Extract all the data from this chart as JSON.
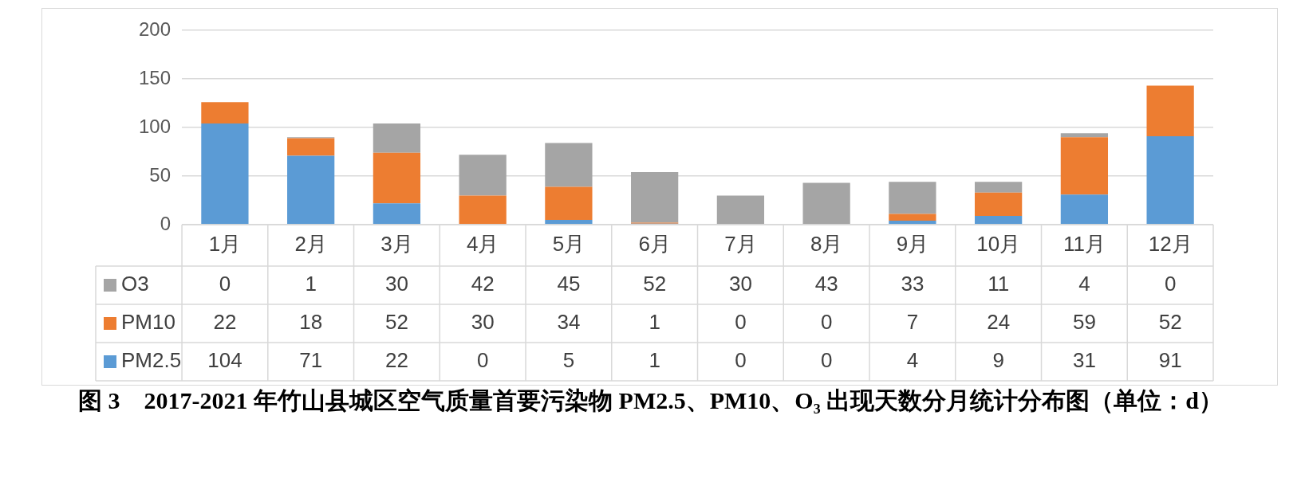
{
  "chart_data": {
    "type": "bar",
    "stacked": true,
    "title": "图 3　2017-2021 年竹山县城区空气质量首要污染物 PM2.5、PM10、O₃ 出现天数分月统计分布图（单位：d）",
    "categories": [
      "1月",
      "2月",
      "3月",
      "4月",
      "5月",
      "6月",
      "7月",
      "8月",
      "9月",
      "10月",
      "11月",
      "12月"
    ],
    "series": [
      {
        "name": "PM2.5",
        "color": "#5b9bd5",
        "values": [
          104,
          71,
          22,
          0,
          5,
          1,
          0,
          0,
          4,
          9,
          31,
          91
        ]
      },
      {
        "name": "PM10",
        "color": "#ed7d31",
        "values": [
          22,
          18,
          52,
          30,
          34,
          1,
          0,
          0,
          7,
          24,
          59,
          52
        ]
      },
      {
        "name": "O3",
        "color": "#a5a5a5",
        "values": [
          0,
          1,
          30,
          42,
          45,
          52,
          30,
          43,
          33,
          11,
          4,
          0
        ]
      }
    ],
    "ylim": [
      0,
      200
    ],
    "yticks": [
      0,
      50,
      100,
      150,
      200
    ],
    "grid": "y",
    "legend": "bottom",
    "data_labels": true
  }
}
